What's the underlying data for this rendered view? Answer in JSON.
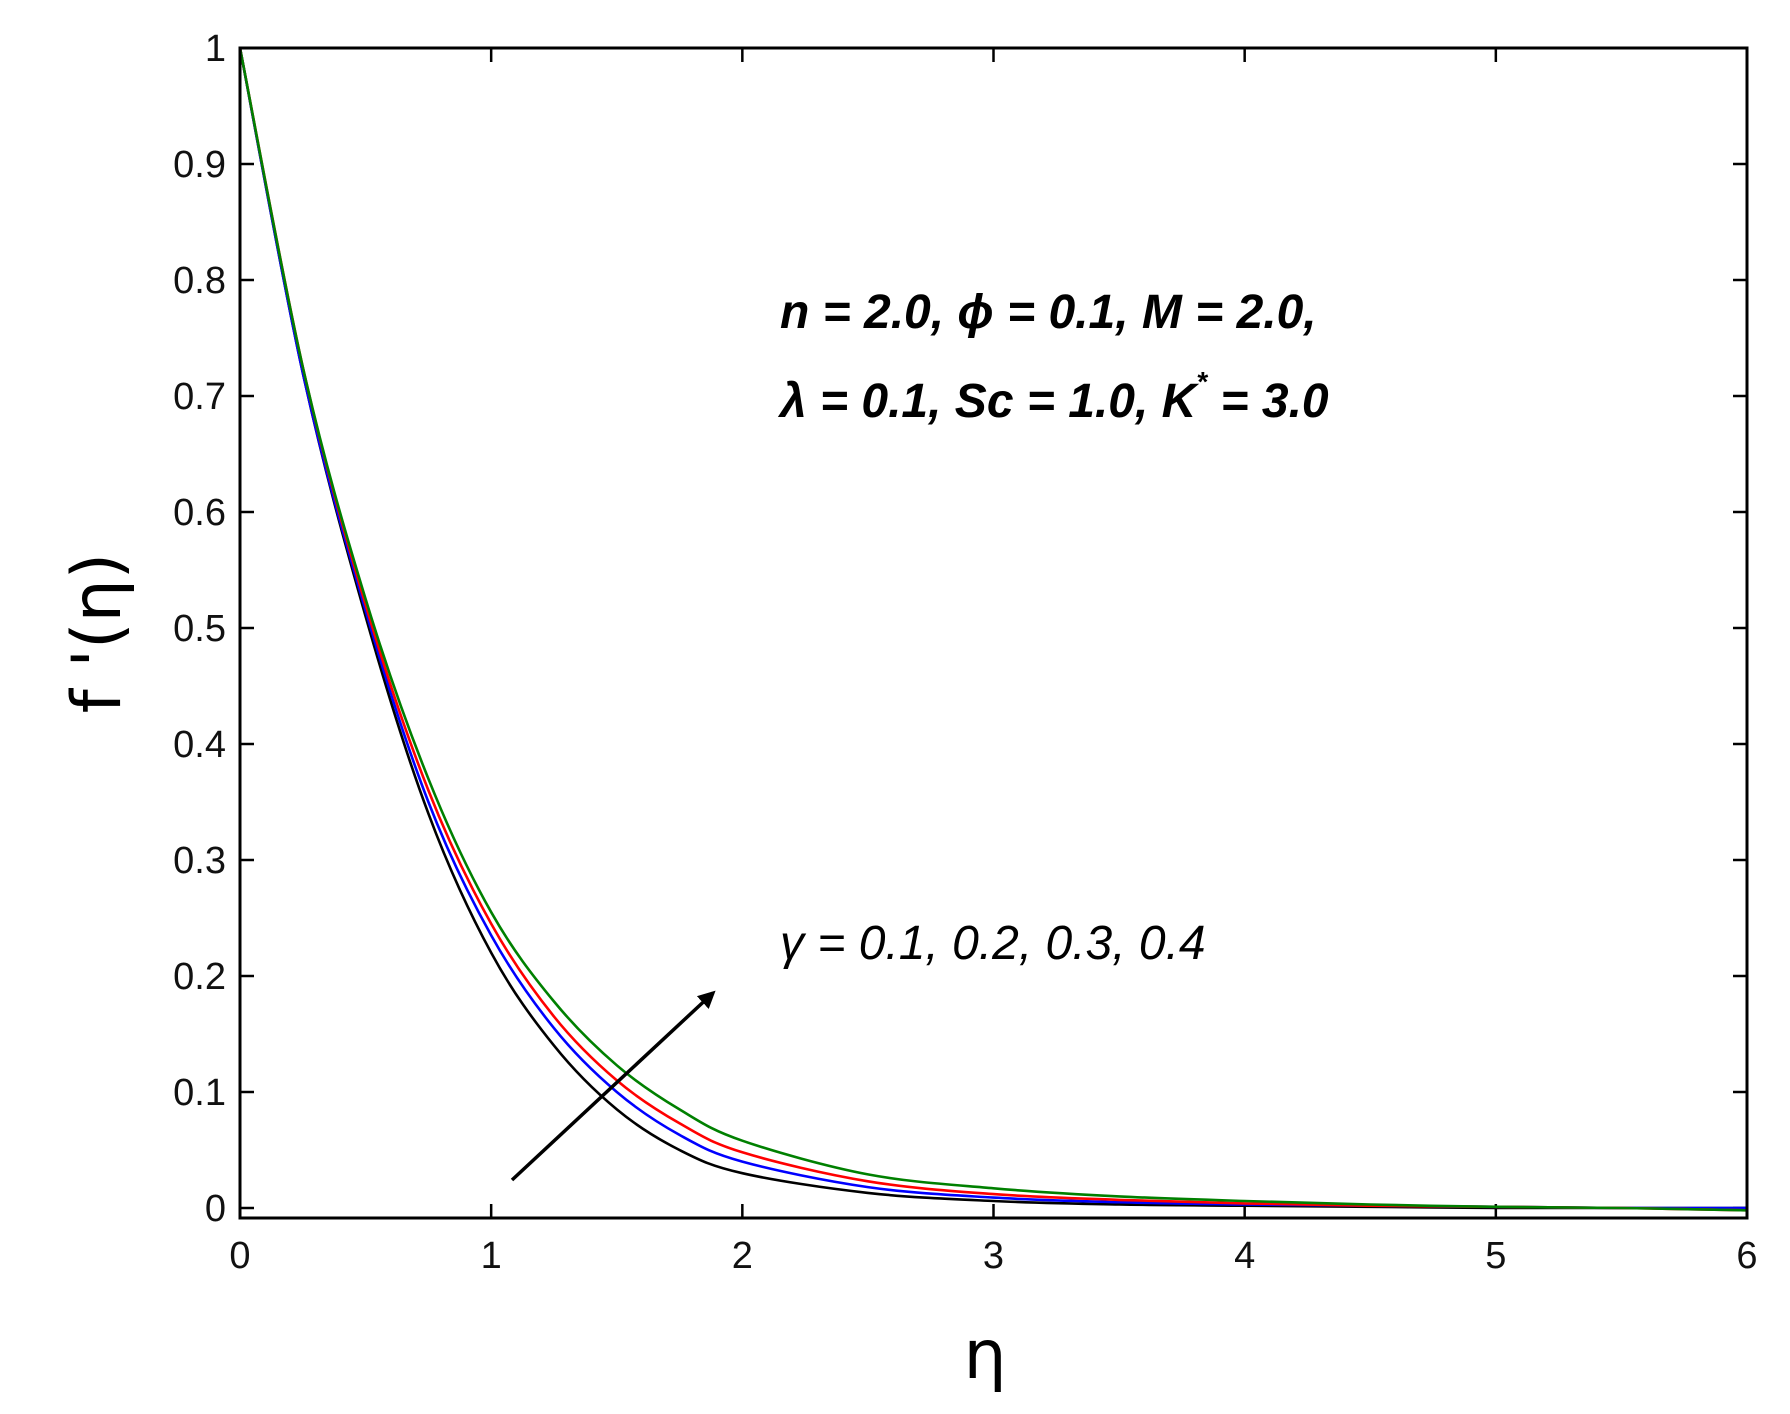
{
  "chart_data": {
    "type": "line",
    "xlabel": "η",
    "ylabel": "f '(η)",
    "xlim": [
      0,
      6
    ],
    "ylim": [
      0,
      1
    ],
    "xticks": [
      "0",
      "1",
      "2",
      "3",
      "4",
      "5",
      "6"
    ],
    "yticks": [
      "0",
      "0.1",
      "0.2",
      "0.3",
      "0.4",
      "0.5",
      "0.6",
      "0.7",
      "0.8",
      "0.9",
      "1"
    ],
    "grid": false,
    "legend": "none",
    "x": [
      0,
      0.25,
      0.5,
      0.75,
      1.0,
      1.25,
      1.5,
      1.75,
      2.0,
      2.5,
      3.0,
      3.5,
      4.0,
      4.5,
      5.0,
      5.5,
      6.0
    ],
    "series": [
      {
        "color": "#000000",
        "values": [
          1.0,
          0.72,
          0.51,
          0.34,
          0.22,
          0.14,
          0.085,
          0.05,
          0.03,
          0.013,
          0.006,
          0.003,
          0.002,
          0.001,
          0.0,
          0.0,
          0.0
        ]
      },
      {
        "color": "#0000ff",
        "values": [
          1.0,
          0.72,
          0.515,
          0.35,
          0.235,
          0.155,
          0.1,
          0.063,
          0.04,
          0.018,
          0.009,
          0.005,
          0.003,
          0.002,
          0.001,
          0.0,
          0.0
        ]
      },
      {
        "color": "#ff0000",
        "values": [
          1.0,
          0.725,
          0.52,
          0.36,
          0.245,
          0.165,
          0.11,
          0.073,
          0.048,
          0.023,
          0.012,
          0.007,
          0.004,
          0.002,
          0.001,
          0.0,
          -0.002
        ]
      },
      {
        "color": "#008000",
        "values": [
          1.0,
          0.725,
          0.525,
          0.37,
          0.255,
          0.178,
          0.123,
          0.085,
          0.058,
          0.029,
          0.017,
          0.01,
          0.006,
          0.003,
          0.001,
          0.0,
          -0.002
        ]
      }
    ],
    "annotations": {
      "params_line1": "n = 2.0,  ϕ = 0.1,  M = 2.0,",
      "params_line2_a": "λ = 0.1,  Sc = 1.0,  K",
      "params_line2_sup": "*",
      "params_line2_b": " = 3.0",
      "gamma_symbol": "γ",
      "gamma_values": " = 0.1, 0.2, 0.3, 0.4"
    }
  }
}
